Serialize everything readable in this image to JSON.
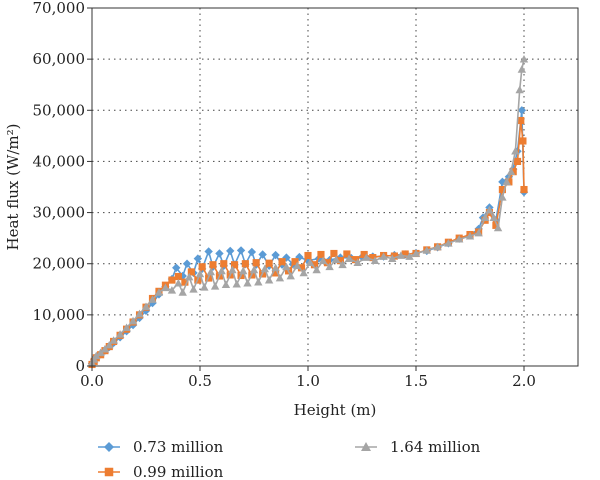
{
  "chart_data": {
    "type": "line",
    "xlabel": "Height (m)",
    "ylabel": "Heat flux (W/m²)",
    "xlim": [
      0,
      2.25
    ],
    "ylim": [
      0,
      70000
    ],
    "x_ticks": [
      0.0,
      0.5,
      1.0,
      1.5,
      2.0
    ],
    "x_tick_labels": [
      "0.0",
      "0.5",
      "1.0",
      "1.5",
      "2.0"
    ],
    "y_ticks": [
      0,
      10000,
      20000,
      30000,
      40000,
      50000,
      60000,
      70000
    ],
    "y_tick_labels": [
      "0",
      "10,000",
      "20,000",
      "30,000",
      "40,000",
      "50,000",
      "60,000",
      "70,000"
    ],
    "grid": "dotted",
    "legend_position": "bottom",
    "series": [
      {
        "name": "0.73 million",
        "color": "#5b9bd5",
        "marker": "diamond",
        "points": [
          [
            0.0,
            500
          ],
          [
            0.01,
            1200
          ],
          [
            0.02,
            1800
          ],
          [
            0.04,
            2400
          ],
          [
            0.06,
            3000
          ],
          [
            0.08,
            3700
          ],
          [
            0.1,
            4500
          ],
          [
            0.13,
            5600
          ],
          [
            0.16,
            6800
          ],
          [
            0.19,
            8000
          ],
          [
            0.22,
            9400
          ],
          [
            0.25,
            10800
          ],
          [
            0.28,
            12300
          ],
          [
            0.31,
            14000
          ],
          [
            0.34,
            15500
          ],
          [
            0.37,
            17000
          ],
          [
            0.39,
            19200
          ],
          [
            0.42,
            17600
          ],
          [
            0.44,
            20000
          ],
          [
            0.47,
            18200
          ],
          [
            0.49,
            21000
          ],
          [
            0.51,
            19000
          ],
          [
            0.54,
            22400
          ],
          [
            0.56,
            19400
          ],
          [
            0.59,
            22000
          ],
          [
            0.61,
            19600
          ],
          [
            0.64,
            22500
          ],
          [
            0.66,
            19800
          ],
          [
            0.69,
            22600
          ],
          [
            0.71,
            19900
          ],
          [
            0.74,
            22300
          ],
          [
            0.76,
            19800
          ],
          [
            0.79,
            21800
          ],
          [
            0.82,
            19600
          ],
          [
            0.85,
            21700
          ],
          [
            0.88,
            19800
          ],
          [
            0.9,
            21200
          ],
          [
            0.93,
            19900
          ],
          [
            0.96,
            21300
          ],
          [
            1.0,
            20600
          ],
          [
            1.05,
            21000
          ],
          [
            1.1,
            20700
          ],
          [
            1.15,
            21200
          ],
          [
            1.2,
            21100
          ],
          [
            1.25,
            21300
          ],
          [
            1.3,
            21400
          ],
          [
            1.35,
            21400
          ],
          [
            1.4,
            21700
          ],
          [
            1.45,
            21800
          ],
          [
            1.5,
            22100
          ],
          [
            1.55,
            22500
          ],
          [
            1.6,
            23200
          ],
          [
            1.65,
            24000
          ],
          [
            1.7,
            24900
          ],
          [
            1.75,
            25600
          ],
          [
            1.79,
            26800
          ],
          [
            1.81,
            29000
          ],
          [
            1.84,
            31000
          ],
          [
            1.87,
            28500
          ],
          [
            1.9,
            36000
          ],
          [
            1.93,
            37000
          ],
          [
            1.95,
            38500
          ],
          [
            1.97,
            42000
          ],
          [
            1.99,
            50000
          ],
          [
            2.0,
            34000
          ]
        ]
      },
      {
        "name": "0.99 million",
        "color": "#ed7d31",
        "marker": "square",
        "points": [
          [
            0.0,
            300
          ],
          [
            0.01,
            900
          ],
          [
            0.02,
            1600
          ],
          [
            0.04,
            2200
          ],
          [
            0.06,
            3000
          ],
          [
            0.08,
            3800
          ],
          [
            0.1,
            4800
          ],
          [
            0.13,
            6000
          ],
          [
            0.16,
            7200
          ],
          [
            0.19,
            8600
          ],
          [
            0.22,
            10000
          ],
          [
            0.25,
            11500
          ],
          [
            0.28,
            13200
          ],
          [
            0.31,
            14600
          ],
          [
            0.34,
            15800
          ],
          [
            0.37,
            16800
          ],
          [
            0.4,
            17500
          ],
          [
            0.43,
            16400
          ],
          [
            0.46,
            18400
          ],
          [
            0.49,
            16800
          ],
          [
            0.51,
            19400
          ],
          [
            0.54,
            17200
          ],
          [
            0.56,
            19800
          ],
          [
            0.59,
            17600
          ],
          [
            0.61,
            20000
          ],
          [
            0.64,
            17800
          ],
          [
            0.66,
            19800
          ],
          [
            0.69,
            17700
          ],
          [
            0.71,
            20000
          ],
          [
            0.74,
            17800
          ],
          [
            0.76,
            20200
          ],
          [
            0.79,
            18000
          ],
          [
            0.82,
            20100
          ],
          [
            0.85,
            18200
          ],
          [
            0.88,
            20400
          ],
          [
            0.91,
            18600
          ],
          [
            0.94,
            20400
          ],
          [
            0.97,
            19200
          ],
          [
            1.0,
            21600
          ],
          [
            1.03,
            19800
          ],
          [
            1.06,
            21800
          ],
          [
            1.09,
            20200
          ],
          [
            1.12,
            22000
          ],
          [
            1.15,
            20600
          ],
          [
            1.18,
            21900
          ],
          [
            1.22,
            20800
          ],
          [
            1.26,
            21800
          ],
          [
            1.3,
            21200
          ],
          [
            1.35,
            21600
          ],
          [
            1.4,
            21500
          ],
          [
            1.45,
            21900
          ],
          [
            1.5,
            22000
          ],
          [
            1.55,
            22700
          ],
          [
            1.6,
            23300
          ],
          [
            1.65,
            24200
          ],
          [
            1.7,
            25000
          ],
          [
            1.75,
            25700
          ],
          [
            1.79,
            26200
          ],
          [
            1.82,
            28500
          ],
          [
            1.84,
            30000
          ],
          [
            1.87,
            27500
          ],
          [
            1.9,
            34500
          ],
          [
            1.93,
            36000
          ],
          [
            1.95,
            38000
          ],
          [
            1.97,
            40000
          ],
          [
            1.985,
            48000
          ],
          [
            1.995,
            44000
          ],
          [
            2.0,
            34500
          ]
        ]
      },
      {
        "name": "1.64 million",
        "color": "#a5a5a5",
        "marker": "triangle",
        "points": [
          [
            0.0,
            600
          ],
          [
            0.01,
            1300
          ],
          [
            0.02,
            2000
          ],
          [
            0.04,
            2600
          ],
          [
            0.06,
            3300
          ],
          [
            0.08,
            4100
          ],
          [
            0.1,
            5000
          ],
          [
            0.13,
            6200
          ],
          [
            0.16,
            7500
          ],
          [
            0.19,
            8800
          ],
          [
            0.22,
            10200
          ],
          [
            0.25,
            11600
          ],
          [
            0.28,
            13000
          ],
          [
            0.31,
            14400
          ],
          [
            0.34,
            15300
          ],
          [
            0.37,
            14800
          ],
          [
            0.4,
            16200
          ],
          [
            0.42,
            14400
          ],
          [
            0.45,
            17400
          ],
          [
            0.47,
            15000
          ],
          [
            0.5,
            18000
          ],
          [
            0.52,
            15400
          ],
          [
            0.55,
            18400
          ],
          [
            0.57,
            15600
          ],
          [
            0.6,
            18600
          ],
          [
            0.62,
            15900
          ],
          [
            0.65,
            18800
          ],
          [
            0.67,
            16000
          ],
          [
            0.7,
            18600
          ],
          [
            0.72,
            16200
          ],
          [
            0.75,
            18800
          ],
          [
            0.77,
            16400
          ],
          [
            0.8,
            19000
          ],
          [
            0.82,
            16800
          ],
          [
            0.85,
            19200
          ],
          [
            0.87,
            17200
          ],
          [
            0.9,
            19400
          ],
          [
            0.92,
            17600
          ],
          [
            0.95,
            19600
          ],
          [
            0.98,
            18200
          ],
          [
            1.01,
            20200
          ],
          [
            1.04,
            18800
          ],
          [
            1.07,
            20600
          ],
          [
            1.1,
            19400
          ],
          [
            1.13,
            20800
          ],
          [
            1.16,
            19800
          ],
          [
            1.19,
            21000
          ],
          [
            1.23,
            20200
          ],
          [
            1.27,
            21200
          ],
          [
            1.31,
            20600
          ],
          [
            1.35,
            21400
          ],
          [
            1.39,
            21000
          ],
          [
            1.43,
            21600
          ],
          [
            1.47,
            21400
          ],
          [
            1.5,
            22000
          ],
          [
            1.55,
            22600
          ],
          [
            1.6,
            23300
          ],
          [
            1.65,
            24000
          ],
          [
            1.7,
            24800
          ],
          [
            1.75,
            25400
          ],
          [
            1.79,
            26000
          ],
          [
            1.82,
            29000
          ],
          [
            1.84,
            30500
          ],
          [
            1.86,
            29000
          ],
          [
            1.88,
            27000
          ],
          [
            1.9,
            33000
          ],
          [
            1.92,
            36000
          ],
          [
            1.94,
            38000
          ],
          [
            1.96,
            42000
          ],
          [
            1.98,
            54000
          ],
          [
            1.99,
            58000
          ],
          [
            2.0,
            60000
          ]
        ]
      }
    ]
  }
}
